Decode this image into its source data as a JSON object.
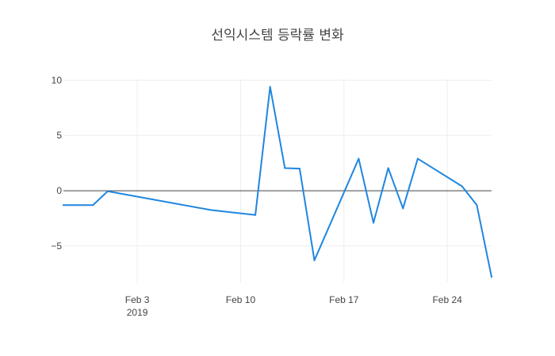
{
  "chart_data": {
    "type": "line",
    "title": "선익시스템 등락률 변화",
    "xlabel": "",
    "ylabel": "",
    "xlim": [
      "2019-01-29",
      "2019-02-27"
    ],
    "ylim": [
      -8.3,
      10.1
    ],
    "grid": true,
    "legend": "none",
    "color": "#1f86e0",
    "x_ticks": [
      {
        "date": "2019-02-03",
        "label": "Feb 3",
        "sublabel": "2019"
      },
      {
        "date": "2019-02-10",
        "label": "Feb 10",
        "sublabel": ""
      },
      {
        "date": "2019-02-17",
        "label": "Feb 17",
        "sublabel": ""
      },
      {
        "date": "2019-02-24",
        "label": "Feb 24",
        "sublabel": ""
      }
    ],
    "y_ticks": [
      {
        "value": 10,
        "label": "10"
      },
      {
        "value": 5,
        "label": "5"
      },
      {
        "value": 0,
        "label": "0"
      },
      {
        "value": -5,
        "label": "−5"
      }
    ],
    "series": [
      {
        "x": [
          "2019-01-29",
          "2019-01-31",
          "2019-02-01",
          "2019-02-08",
          "2019-02-11",
          "2019-02-12",
          "2019-02-13",
          "2019-02-14",
          "2019-02-15",
          "2019-02-18",
          "2019-02-19",
          "2019-02-20",
          "2019-02-21",
          "2019-02-22",
          "2019-02-25",
          "2019-02-26",
          "2019-02-27"
        ],
        "y": [
          -1.3,
          -1.3,
          -0.05,
          -1.75,
          -2.2,
          9.4,
          2.05,
          2.0,
          -6.3,
          2.9,
          -2.9,
          2.05,
          -1.6,
          2.9,
          0.4,
          -1.3,
          -7.8
        ]
      }
    ]
  }
}
